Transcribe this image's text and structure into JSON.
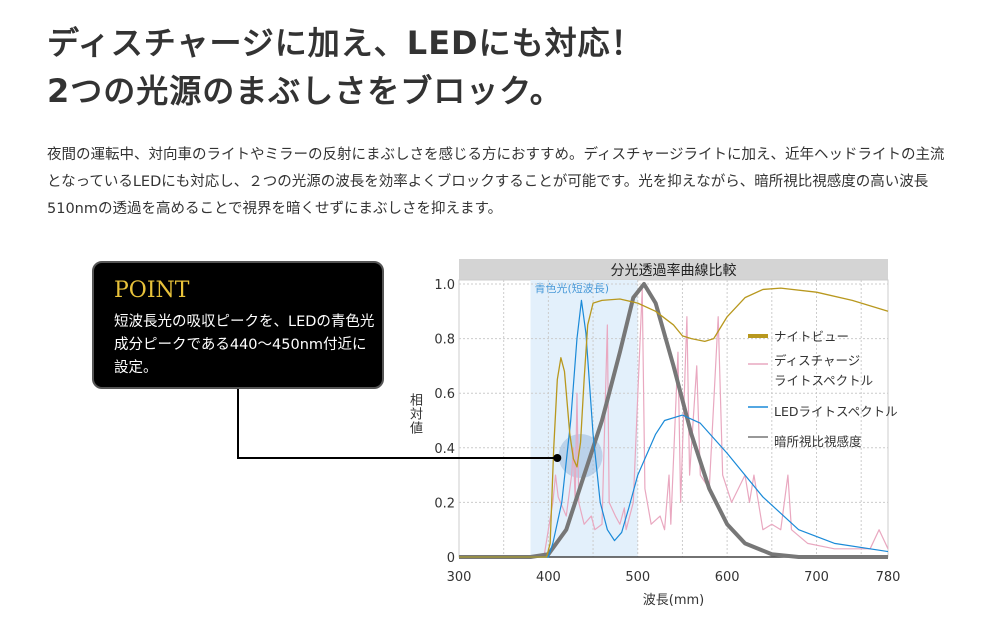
{
  "heading": {
    "line1": "ディスチャージに加え、LEDにも対応！",
    "line2": "2つの光源のまぶしさをブロック。"
  },
  "description": "夜間の運転中、対向車のライトやミラーの反射にまぶしさを感じる方におすすめ。ディスチャージライトに加え、近年ヘッドライトの主流となっているLEDにも対応し、２つの光源の波長を効率よくブロックすることが可能です。光を抑えながら、暗所視比視感度の高い波長510nmの透過を高めることで視界を暗くせずにまぶしさを抑えます。",
  "point": {
    "title": "POINT",
    "text": "短波長光の吸収ピークを、LEDの青色光成分ピークである440〜450nm付近に設定。"
  },
  "chart_data": {
    "type": "line",
    "title": "分光透過率曲線比較",
    "xlabel": "波長(mm)",
    "ylabel": "相対値",
    "xlim": [
      300,
      780
    ],
    "ylim": [
      0,
      1.0
    ],
    "xticks": [
      300,
      400,
      500,
      600,
      700,
      780
    ],
    "yticks": [
      0,
      0.2,
      0.4,
      0.6,
      0.8,
      1.0
    ],
    "ytick_labels": [
      "0",
      "0.2",
      "0.4",
      "0.6",
      "0.8",
      "1.0"
    ],
    "band": {
      "label": "青色光(短波長)",
      "from": 380,
      "to": 500
    },
    "highlight": {
      "x": 436,
      "y": 0.37
    },
    "marker": {
      "x": 410,
      "y": 0.36
    },
    "series": [
      {
        "name": "ナイトビュー",
        "color": "#b8981e",
        "points": [
          [
            300,
            0
          ],
          [
            398,
            0
          ],
          [
            402,
            0.05
          ],
          [
            406,
            0.4
          ],
          [
            410,
            0.65
          ],
          [
            414,
            0.73
          ],
          [
            418,
            0.68
          ],
          [
            424,
            0.45
          ],
          [
            428,
            0.36
          ],
          [
            432,
            0.33
          ],
          [
            436,
            0.42
          ],
          [
            440,
            0.65
          ],
          [
            444,
            0.85
          ],
          [
            450,
            0.93
          ],
          [
            460,
            0.94
          ],
          [
            480,
            0.945
          ],
          [
            500,
            0.93
          ],
          [
            520,
            0.9
          ],
          [
            540,
            0.85
          ],
          [
            550,
            0.81
          ],
          [
            560,
            0.8
          ],
          [
            575,
            0.79
          ],
          [
            585,
            0.8
          ],
          [
            600,
            0.88
          ],
          [
            620,
            0.95
          ],
          [
            640,
            0.98
          ],
          [
            660,
            0.985
          ],
          [
            700,
            0.97
          ],
          [
            740,
            0.94
          ],
          [
            780,
            0.9
          ]
        ]
      },
      {
        "name": "ディスチャージライトスペクトル",
        "color": "#e9a8c0",
        "points": [
          [
            395,
            0
          ],
          [
            405,
            0.2
          ],
          [
            408,
            0.3
          ],
          [
            411,
            0.22
          ],
          [
            420,
            0.15
          ],
          [
            426,
            0.3
          ],
          [
            428,
            0.4
          ],
          [
            430,
            0.2
          ],
          [
            432,
            0.6
          ],
          [
            434,
            0.2
          ],
          [
            440,
            0.12
          ],
          [
            448,
            0.15
          ],
          [
            452,
            0.1
          ],
          [
            460,
            0.12
          ],
          [
            466,
            0.85
          ],
          [
            468,
            0.2
          ],
          [
            475,
            0.15
          ],
          [
            480,
            0.12
          ],
          [
            485,
            0.18
          ],
          [
            487,
            0.1
          ],
          [
            495,
            0.2
          ],
          [
            505,
            0.98
          ],
          [
            508,
            0.25
          ],
          [
            515,
            0.12
          ],
          [
            525,
            0.15
          ],
          [
            530,
            0.1
          ],
          [
            535,
            0.3
          ],
          [
            537,
            0.12
          ],
          [
            545,
            0.75
          ],
          [
            548,
            0.2
          ],
          [
            555,
            0.88
          ],
          [
            558,
            0.3
          ],
          [
            566,
            0.7
          ],
          [
            570,
            0.3
          ],
          [
            580,
            0.25
          ],
          [
            590,
            0.88
          ],
          [
            595,
            0.3
          ],
          [
            605,
            0.2
          ],
          [
            620,
            0.3
          ],
          [
            625,
            0.2
          ],
          [
            630,
            0.3
          ],
          [
            640,
            0.1
          ],
          [
            650,
            0.12
          ],
          [
            660,
            0.1
          ],
          [
            668,
            0.3
          ],
          [
            672,
            0.1
          ],
          [
            690,
            0.05
          ],
          [
            720,
            0.03
          ],
          [
            760,
            0.03
          ],
          [
            770,
            0.1
          ],
          [
            780,
            0.03
          ]
        ]
      },
      {
        "name": "LEDライトスペクトル",
        "color": "#1a8ad8",
        "points": [
          [
            300,
            0
          ],
          [
            400,
            0
          ],
          [
            405,
            0.05
          ],
          [
            415,
            0.2
          ],
          [
            425,
            0.5
          ],
          [
            432,
            0.8
          ],
          [
            437,
            0.94
          ],
          [
            442,
            0.82
          ],
          [
            450,
            0.45
          ],
          [
            458,
            0.2
          ],
          [
            466,
            0.1
          ],
          [
            474,
            0.06
          ],
          [
            482,
            0.09
          ],
          [
            490,
            0.18
          ],
          [
            500,
            0.3
          ],
          [
            520,
            0.45
          ],
          [
            530,
            0.5
          ],
          [
            550,
            0.52
          ],
          [
            570,
            0.49
          ],
          [
            600,
            0.38
          ],
          [
            640,
            0.22
          ],
          [
            680,
            0.1
          ],
          [
            720,
            0.05
          ],
          [
            780,
            0.02
          ]
        ]
      },
      {
        "name": "暗所視比視感度",
        "color": "#777777",
        "points": [
          [
            300,
            0
          ],
          [
            380,
            0
          ],
          [
            400,
            0.01
          ],
          [
            420,
            0.1
          ],
          [
            440,
            0.3
          ],
          [
            460,
            0.5
          ],
          [
            480,
            0.75
          ],
          [
            495,
            0.95
          ],
          [
            507,
            1.0
          ],
          [
            520,
            0.93
          ],
          [
            540,
            0.7
          ],
          [
            560,
            0.45
          ],
          [
            580,
            0.25
          ],
          [
            600,
            0.12
          ],
          [
            620,
            0.05
          ],
          [
            650,
            0.01
          ],
          [
            680,
            0
          ],
          [
            780,
            0
          ]
        ]
      }
    ],
    "legend": [
      "ナイトビュー",
      "ディスチャージ",
      "ライトスペクトル",
      "LEDライトスペクトル",
      "暗所視比視感度"
    ]
  }
}
